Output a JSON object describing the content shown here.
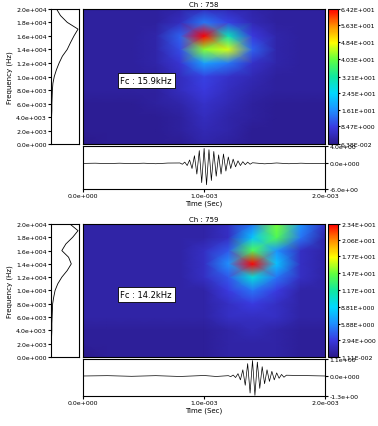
{
  "chart_data": [
    {
      "type": "spectrogram",
      "title": "Ch : 758",
      "annotation": "Fc : 15.9kHz",
      "ylabel": "Frequency (Hz)",
      "xlabel": "Time (Sec)",
      "xlim": [
        0,
        0.002
      ],
      "xticks": [
        {
          "value": 0,
          "label": "0.0e+000"
        },
        {
          "value": 0.001,
          "label": "1.0e-003"
        },
        {
          "value": 0.002,
          "label": "2.0e-003"
        }
      ],
      "ylim": [
        0,
        20000
      ],
      "yticks": [
        {
          "value": 0,
          "label": "0.0e+000"
        },
        {
          "value": 2000,
          "label": "2.0e+003"
        },
        {
          "value": 4000,
          "label": "4.0e+003"
        },
        {
          "value": 6000,
          "label": "6.0e+003"
        },
        {
          "value": 8000,
          "label": "8.0e+003"
        },
        {
          "value": 10000,
          "label": "1.0e+004"
        },
        {
          "value": 12000,
          "label": "1.2e+004"
        },
        {
          "value": 14000,
          "label": "1.4e+004"
        },
        {
          "value": 16000,
          "label": "1.6e+004"
        },
        {
          "value": 18000,
          "label": "1.8e+004"
        },
        {
          "value": 20000,
          "label": "2.0e+004"
        }
      ],
      "spectrum": {
        "y": [
          0,
          1000,
          2000,
          3000,
          4000,
          5000,
          6000,
          7000,
          8000,
          9000,
          10000,
          11000,
          12000,
          13000,
          14000,
          15000,
          16000,
          17000,
          18000,
          19000,
          20000
        ],
        "values": [
          0.01,
          0.01,
          0.01,
          0.02,
          0.02,
          0.03,
          0.03,
          0.04,
          0.05,
          0.07,
          0.12,
          0.2,
          0.3,
          0.42,
          0.6,
          0.72,
          0.85,
          1.0,
          0.6,
          0.35,
          0.2
        ],
        "xlim": [
          0,
          1.05
        ]
      },
      "heatmap": {
        "x": [
          0,
          0.0002,
          0.0004,
          0.0006,
          0.0008,
          0.001,
          0.0012,
          0.0014,
          0.0016,
          0.0018,
          0.002
        ],
        "y": [
          0,
          2000,
          4000,
          6000,
          8000,
          10000,
          12000,
          14000,
          16000,
          18000,
          20000
        ],
        "cells": [
          [
            0.0638,
            1,
            1,
            1,
            1,
            3,
            2,
            1,
            1,
            1,
            1
          ],
          [
            1,
            1,
            1,
            1,
            2,
            4,
            3,
            1,
            1,
            1,
            1
          ],
          [
            1,
            1,
            1,
            1,
            2,
            5,
            3,
            2,
            1,
            1,
            1
          ],
          [
            1,
            1,
            1,
            2,
            3,
            6,
            4,
            2,
            1,
            1,
            1
          ],
          [
            2,
            2,
            2,
            2,
            5,
            8,
            5,
            3,
            2,
            2,
            2
          ],
          [
            2,
            2,
            2,
            2,
            5,
            9,
            6,
            4,
            2,
            2,
            2
          ],
          [
            2,
            2,
            2,
            3,
            7,
            18,
            14,
            6,
            3,
            2,
            2
          ],
          [
            2,
            2,
            2,
            3,
            10,
            42,
            46,
            12,
            3,
            2,
            2
          ],
          [
            2,
            2,
            2,
            3,
            12,
            64.2,
            30,
            8,
            3,
            2,
            2
          ],
          [
            2,
            2,
            2,
            2,
            5,
            14,
            9,
            4,
            2,
            2,
            2
          ],
          [
            2,
            2,
            2,
            2,
            3,
            5,
            4,
            3,
            2,
            2,
            2
          ]
        ],
        "colorbar_range": [
          0.0638,
          64.2
        ],
        "colorbar_ticks": [
          {
            "value": 0.0638,
            "label": "6.38E-002"
          },
          {
            "value": 8.47,
            "label": "8.47E+000"
          },
          {
            "value": 16.1,
            "label": "1.61E+001"
          },
          {
            "value": 24.5,
            "label": "2.45E+001"
          },
          {
            "value": 32.1,
            "label": "3.21E+001"
          },
          {
            "value": 40.3,
            "label": "4.03E+001"
          },
          {
            "value": 48.4,
            "label": "4.84E+001"
          },
          {
            "value": 56.3,
            "label": "5.63E+001"
          },
          {
            "value": 64.2,
            "label": "6.42E+001"
          }
        ]
      },
      "waveform": {
        "x": [
          0,
          0.0001,
          0.0002,
          0.0003,
          0.0004,
          0.0005,
          0.0006,
          0.0007,
          0.0008,
          0.00082,
          0.00084,
          0.00086,
          0.00088,
          0.0009,
          0.00092,
          0.00094,
          0.00096,
          0.00098,
          0.001,
          0.00102,
          0.00104,
          0.00106,
          0.00108,
          0.0011,
          0.00112,
          0.00114,
          0.00116,
          0.00118,
          0.0012,
          0.00122,
          0.00124,
          0.00126,
          0.00128,
          0.0013,
          0.00132,
          0.00134,
          0.00136,
          0.00138,
          0.0014,
          0.0015,
          0.0016,
          0.0017,
          0.0018,
          0.0019,
          0.002
        ],
        "values": [
          0,
          0.05,
          -0.05,
          0.05,
          -0.05,
          0.05,
          -0.08,
          0.08,
          0.1,
          -0.2,
          0.3,
          -0.5,
          0.8,
          -1.2,
          1.8,
          -2.5,
          3.0,
          -4.5,
          3.5,
          -5.0,
          3.2,
          -4.0,
          2.8,
          -3.0,
          2.0,
          -2.5,
          2.2,
          -1.8,
          1.5,
          -1.2,
          1.0,
          -0.8,
          0.6,
          -0.5,
          0.4,
          -0.3,
          0.3,
          -0.2,
          0.15,
          -0.1,
          0.1,
          -0.08,
          0.05,
          -0.05,
          0
        ],
        "ylim": [
          -6,
          4
        ],
        "yticks": [
          {
            "value": -6,
            "label": "-6.0e+00"
          },
          {
            "value": 0,
            "label": "0.0e+000"
          },
          {
            "value": 4,
            "label": "4.0e+00"
          }
        ]
      }
    },
    {
      "type": "spectrogram",
      "title": "Ch : 759",
      "annotation": "Fc : 14.2kHz",
      "ylabel": "Frequency (Hz)",
      "xlabel": "Time (Sec)",
      "xlim": [
        0,
        0.002
      ],
      "xticks": [
        {
          "value": 0,
          "label": "0.0e+000"
        },
        {
          "value": 0.001,
          "label": "1.0e-003"
        },
        {
          "value": 0.002,
          "label": "2.0e-003"
        }
      ],
      "ylim": [
        0,
        20000
      ],
      "yticks": [
        {
          "value": 0,
          "label": "0.0e+000"
        },
        {
          "value": 2000,
          "label": "2.0e+003"
        },
        {
          "value": 4000,
          "label": "4.0e+003"
        },
        {
          "value": 6000,
          "label": "6.0e+003"
        },
        {
          "value": 8000,
          "label": "8.0e+003"
        },
        {
          "value": 10000,
          "label": "1.0e+004"
        },
        {
          "value": 12000,
          "label": "1.2e+004"
        },
        {
          "value": 14000,
          "label": "1.4e+004"
        },
        {
          "value": 16000,
          "label": "1.6e+004"
        },
        {
          "value": 18000,
          "label": "1.8e+004"
        },
        {
          "value": 20000,
          "label": "2.0e+004"
        }
      ],
      "spectrum": {
        "y": [
          0,
          1000,
          2000,
          3000,
          4000,
          5000,
          6000,
          7000,
          8000,
          9000,
          10000,
          11000,
          12000,
          13000,
          14000,
          15000,
          16000,
          17000,
          18000,
          19000,
          20000
        ],
        "values": [
          0.01,
          0.01,
          0.02,
          0.02,
          0.03,
          0.03,
          0.04,
          0.05,
          0.06,
          0.1,
          0.15,
          0.25,
          0.4,
          0.6,
          0.75,
          0.65,
          0.4,
          0.55,
          0.8,
          1.0,
          0.7
        ],
        "xlim": [
          0,
          1.05
        ]
      },
      "heatmap": {
        "x": [
          0,
          0.0002,
          0.0004,
          0.0006,
          0.0008,
          0.001,
          0.0012,
          0.0014,
          0.0016,
          0.0018,
          0.002
        ],
        "y": [
          0,
          2000,
          4000,
          6000,
          8000,
          10000,
          12000,
          14000,
          16000,
          18000,
          20000
        ],
        "cells": [
          [
            0.0111,
            0.5,
            0.5,
            0.5,
            0.5,
            0.5,
            1,
            1,
            1,
            0.5,
            0.5
          ],
          [
            0.5,
            0.5,
            0.5,
            0.5,
            0.5,
            0.5,
            1,
            1,
            1,
            0.5,
            0.5
          ],
          [
            0.5,
            0.5,
            0.5,
            0.5,
            0.5,
            0.5,
            1,
            1.5,
            1,
            0.5,
            0.5
          ],
          [
            1,
            1,
            1,
            1,
            1,
            1,
            2,
            2,
            2,
            1,
            1
          ],
          [
            1,
            1,
            1,
            1,
            1,
            1,
            2,
            3,
            2,
            1,
            1
          ],
          [
            1,
            1,
            1,
            1,
            1,
            1,
            3,
            5,
            3,
            1,
            1
          ],
          [
            1,
            1,
            1,
            1,
            1,
            2,
            4,
            10,
            5,
            2,
            1
          ],
          [
            1,
            1,
            1,
            1,
            1,
            2,
            6,
            23.4,
            8,
            2,
            1
          ],
          [
            1,
            1,
            1,
            1,
            1,
            2,
            4,
            14,
            6,
            2,
            1
          ],
          [
            1,
            1,
            1,
            1,
            1,
            1,
            2,
            8,
            14,
            5,
            1
          ],
          [
            1,
            1,
            1,
            1,
            1,
            1,
            2,
            5,
            15,
            6,
            2
          ]
        ],
        "colorbar_range": [
          0.0111,
          23.4
        ],
        "colorbar_ticks": [
          {
            "value": 0.0111,
            "label": "1.11E-002"
          },
          {
            "value": 2.94,
            "label": "2.94E+000"
          },
          {
            "value": 5.88,
            "label": "5.88E+000"
          },
          {
            "value": 8.81,
            "label": "8.81E+000"
          },
          {
            "value": 11.7,
            "label": "1.17E+001"
          },
          {
            "value": 14.7,
            "label": "1.47E+001"
          },
          {
            "value": 17.7,
            "label": "1.77E+001"
          },
          {
            "value": 20.6,
            "label": "2.06E+001"
          },
          {
            "value": 23.4,
            "label": "2.34E+001"
          }
        ]
      },
      "waveform": {
        "x": [
          0,
          0.0002,
          0.0004,
          0.0006,
          0.0008,
          0.001,
          0.0011,
          0.0012,
          0.00122,
          0.00124,
          0.00126,
          0.00128,
          0.0013,
          0.00132,
          0.00134,
          0.00136,
          0.00138,
          0.0014,
          0.00142,
          0.00144,
          0.00146,
          0.00148,
          0.0015,
          0.00152,
          0.00154,
          0.00156,
          0.00158,
          0.0016,
          0.00162,
          0.00164,
          0.00166,
          0.00168,
          0.0018,
          0.002
        ],
        "values": [
          0,
          0.02,
          -0.02,
          0.02,
          -0.03,
          0.03,
          -0.03,
          0.02,
          -0.04,
          0.06,
          -0.1,
          0.15,
          -0.25,
          0.4,
          -0.6,
          0.8,
          -1.1,
          1.0,
          -1.25,
          0.9,
          -0.8,
          0.6,
          -0.5,
          0.4,
          -0.35,
          0.3,
          -0.25,
          0.2,
          -0.15,
          0.1,
          -0.08,
          0.05,
          0.03,
          0
        ],
        "ylim": [
          -1.3,
          1.1
        ],
        "yticks": [
          {
            "value": -1.3,
            "label": "-1.3e+00"
          },
          {
            "value": 0,
            "label": "0.0e+000"
          },
          {
            "value": 1.1,
            "label": "1.1e+00"
          }
        ]
      }
    }
  ]
}
